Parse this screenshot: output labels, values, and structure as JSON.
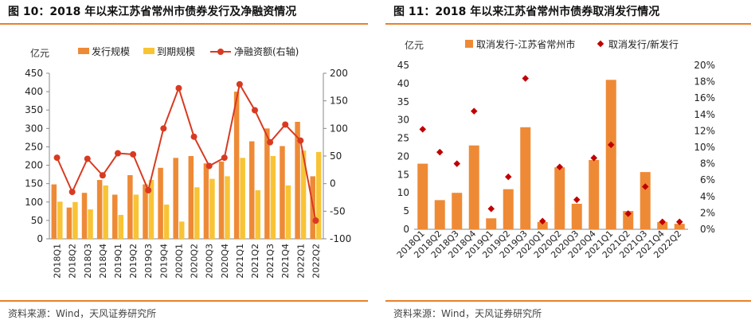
{
  "left": {
    "title": "图 10：2018 年以来江苏省常州市债券发行及净融资情况",
    "source": "资料来源：Wind，天风证券研究所"
  },
  "right": {
    "title": "图 11：2018 年以来江苏省常州市债券取消发行情况",
    "source": "资料来源：Wind，天风证券研究所"
  },
  "colors": {
    "accent": "#E8812A",
    "issue": "#EE8A36",
    "maturity": "#F8C436",
    "net": "#D83A21",
    "cancel": "#EE8A36",
    "ratio": "#C00000"
  },
  "chart_data": [
    {
      "type": "bar",
      "unit_left": "亿元",
      "categories": [
        "2018Q1",
        "2018Q2",
        "2018Q3",
        "2018Q4",
        "2019Q1",
        "2019Q2",
        "2019Q3",
        "2019Q4",
        "2020Q1",
        "2020Q2",
        "2020Q3",
        "2020Q4",
        "2021Q1",
        "2021Q2",
        "2021Q3",
        "2021Q4",
        "2022Q1",
        "2022Q2"
      ],
      "series": [
        {
          "name": "发行规模",
          "kind": "bar",
          "axis": "left",
          "values": [
            148,
            85,
            125,
            160,
            120,
            173,
            148,
            193,
            220,
            225,
            205,
            210,
            400,
            265,
            300,
            252,
            318,
            170
          ]
        },
        {
          "name": "到期规模",
          "kind": "bar",
          "axis": "left",
          "values": [
            101,
            100,
            80,
            145,
            65,
            120,
            160,
            93,
            47,
            140,
            163,
            170,
            220,
            132,
            225,
            145,
            240,
            236
          ]
        },
        {
          "name": "净融资额(右轴)",
          "kind": "line",
          "axis": "right",
          "values": [
            47,
            -15,
            45,
            15,
            55,
            53,
            -12,
            100,
            173,
            85,
            32,
            47,
            180,
            133,
            75,
            107,
            78,
            -67
          ]
        }
      ],
      "ylim_left": [
        0,
        450
      ],
      "yticks_left": [
        0,
        50,
        100,
        150,
        200,
        250,
        300,
        350,
        400,
        450
      ],
      "ylim_right": [
        -100,
        200
      ],
      "yticks_right": [
        -100,
        -50,
        0,
        50,
        100,
        150,
        200
      ],
      "legend_position": "top",
      "grid": false
    },
    {
      "type": "bar",
      "unit_left": "亿元",
      "categories": [
        "2018Q1",
        "2018Q2",
        "2018Q3",
        "2018Q4",
        "2019Q1",
        "2019Q2",
        "2019Q3",
        "2020Q1",
        "2020Q2",
        "2020Q3",
        "2020Q4",
        "2021Q1",
        "2021Q2",
        "2021Q3",
        "2021Q4",
        "2022Q2"
      ],
      "series": [
        {
          "name": "取消发行-江苏省常州市",
          "kind": "bar",
          "axis": "left",
          "values": [
            18,
            8,
            10,
            23,
            3,
            11,
            28,
            2,
            17,
            7,
            19,
            41,
            5,
            15.7,
            2,
            1.5
          ]
        },
        {
          "name": "取消发行/新发行",
          "kind": "scatter",
          "axis": "right",
          "values": [
            0.122,
            0.094,
            0.08,
            0.144,
            0.025,
            0.064,
            0.184,
            0.01,
            0.076,
            0.036,
            0.087,
            0.103,
            0.019,
            0.052,
            0.009,
            0.009
          ]
        }
      ],
      "ylim_left": [
        0,
        45
      ],
      "yticks_left": [
        0,
        5,
        10,
        15,
        20,
        25,
        30,
        35,
        40,
        45
      ],
      "ylim_right": [
        0,
        0.2
      ],
      "yticks_right": [
        "0%",
        "2%",
        "4%",
        "6%",
        "8%",
        "10%",
        "12%",
        "14%",
        "16%",
        "18%",
        "20%"
      ],
      "legend_position": "top",
      "grid": false
    }
  ]
}
